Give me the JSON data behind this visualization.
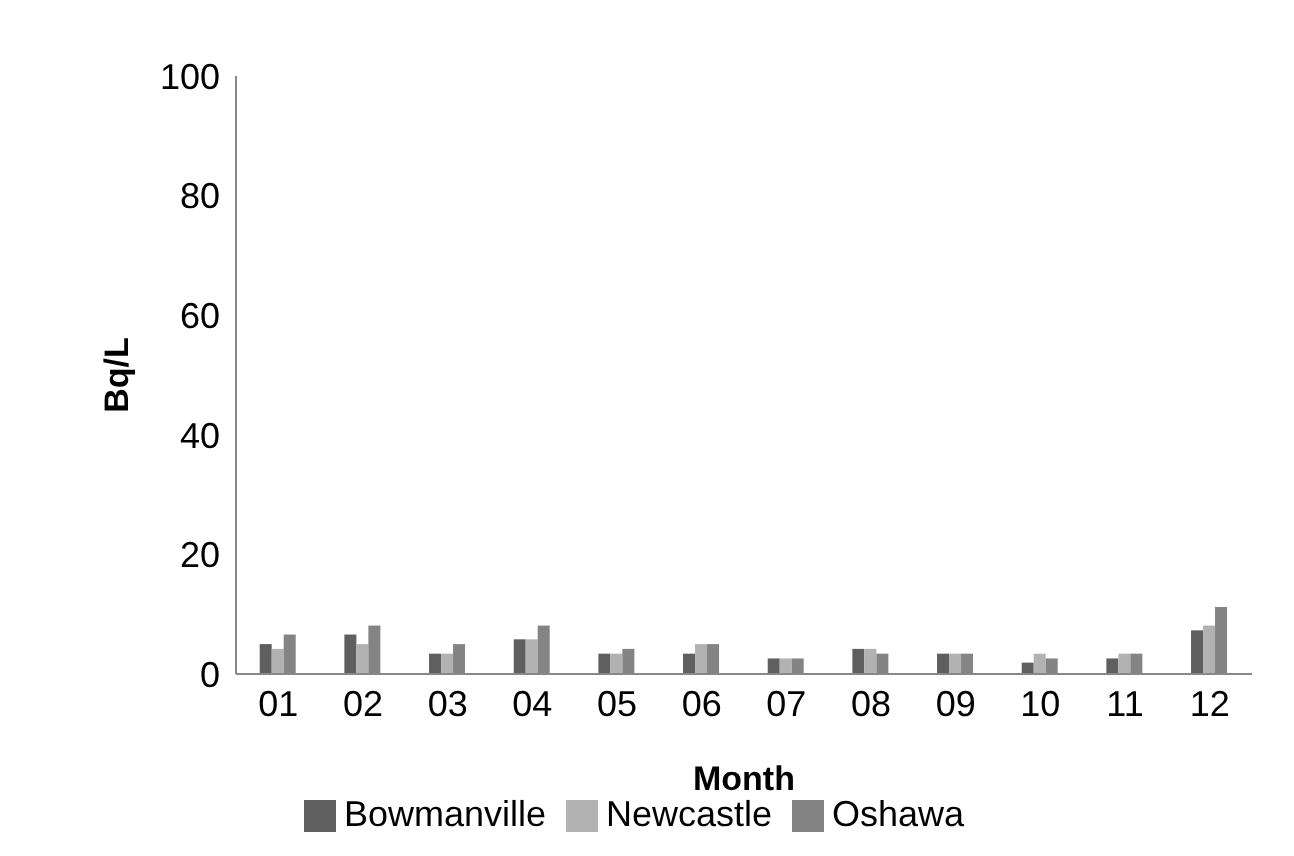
{
  "chart_data": {
    "type": "bar",
    "xlabel": "Month",
    "ylabel": "Bq/L",
    "categories": [
      "01",
      "02",
      "03",
      "04",
      "05",
      "06",
      "07",
      "08",
      "09",
      "10",
      "11",
      "12"
    ],
    "series": [
      {
        "name": "Bowmanville",
        "color": "#5f5f5f",
        "values": [
          5.0,
          6.6,
          3.4,
          5.8,
          3.4,
          3.4,
          2.6,
          4.2,
          3.4,
          1.9,
          2.6,
          7.3
        ]
      },
      {
        "name": "Newcastle",
        "color": "#b2b2b2",
        "values": [
          4.2,
          5.0,
          3.4,
          5.8,
          3.4,
          5.0,
          2.6,
          4.2,
          3.4,
          3.4,
          3.4,
          8.1
        ]
      },
      {
        "name": "Oshawa",
        "color": "#848484",
        "values": [
          6.6,
          8.1,
          5.0,
          8.1,
          4.2,
          5.0,
          2.6,
          3.4,
          3.4,
          2.6,
          3.4,
          11.2
        ]
      }
    ],
    "ylim": [
      0,
      100
    ],
    "yticks": [
      0,
      20,
      40,
      60,
      80,
      100
    ],
    "grid": false,
    "legend": "bottom"
  }
}
